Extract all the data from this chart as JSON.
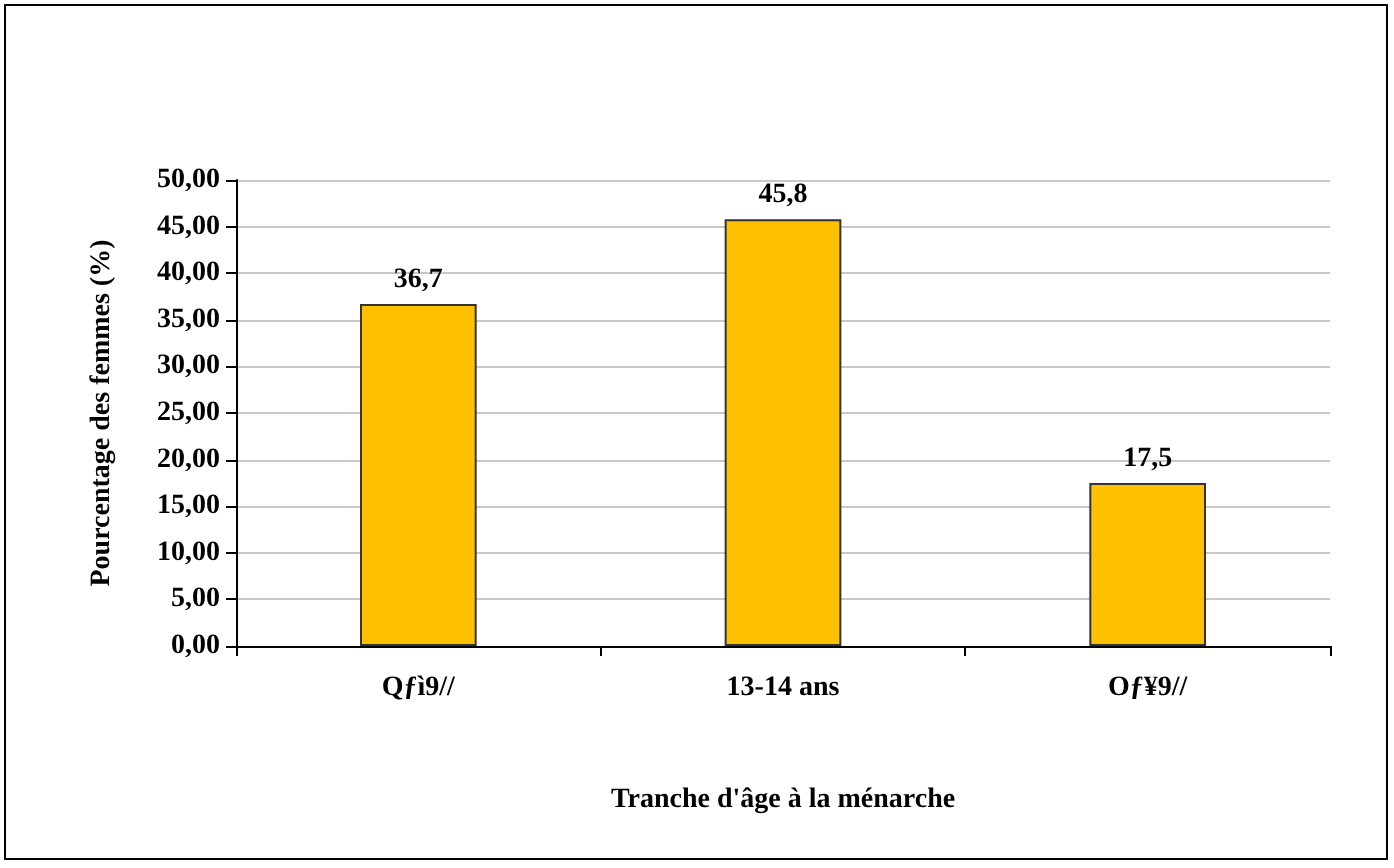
{
  "chart_data": {
    "type": "bar",
    "categories": [
      "Qƒì9//",
      "13-14 ans",
      "Oƒ¥9//"
    ],
    "values": [
      36.7,
      45.8,
      17.5
    ],
    "value_labels": [
      "36,7",
      "45,8",
      "17,5"
    ],
    "color": "#ffc000",
    "xlabel": "Tranche d'âge à la ménarche",
    "ylabel": "Pourcentage des femmes (%)",
    "ylim": [
      0,
      50
    ],
    "yticks": [
      {
        "value": 0,
        "label": "0,00"
      },
      {
        "value": 5,
        "label": "5,00"
      },
      {
        "value": 10,
        "label": "10,00"
      },
      {
        "value": 15,
        "label": "15,00"
      },
      {
        "value": 20,
        "label": "20,00"
      },
      {
        "value": 25,
        "label": "25,00"
      },
      {
        "value": 30,
        "label": "30,00"
      },
      {
        "value": 35,
        "label": "35,00"
      },
      {
        "value": 40,
        "label": "40,00"
      },
      {
        "value": 45,
        "label": "45,00"
      },
      {
        "value": 50,
        "label": "50,00"
      }
    ],
    "grid": "y"
  }
}
